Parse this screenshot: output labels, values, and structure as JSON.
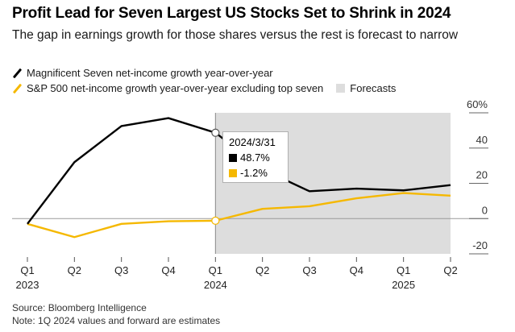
{
  "title": "Profit Lead for Seven Largest US Stocks Set to Shrink in 2024",
  "subtitle": "The gap in earnings growth for those shares versus the rest is forecast to narrow",
  "legend": {
    "series1": "Magnificent Seven net-income growth year-over-year",
    "series2": "S&P 500 net-income growth year-over-year excluding top seven",
    "forecasts": "Forecasts"
  },
  "tooltip": {
    "date": "2024/3/31",
    "value1": "48.7%",
    "value2": "-1.2%"
  },
  "footer": {
    "source": "Source: Bloomberg Intelligence",
    "note": "Note: 1Q 2024 values and forward are estimates"
  },
  "colors": {
    "series1": "#000000",
    "series2": "#f5b800",
    "forecast_shade": "#dddddd",
    "zero_line": "#9a9a9a"
  },
  "chart_data": {
    "type": "line",
    "title": "Profit Lead for Seven Largest US Stocks Set to Shrink in 2024",
    "xlabel": "",
    "ylabel": "",
    "categories": [
      "Q1 2023",
      "Q2 2023",
      "Q3 2023",
      "Q4 2023",
      "Q1 2024",
      "Q2 2024",
      "Q3 2024",
      "Q4 2024",
      "Q1 2025",
      "Q2 2025"
    ],
    "x_tick_labels": [
      {
        "q": "Q1",
        "year": "2023"
      },
      {
        "q": "Q2",
        "year": ""
      },
      {
        "q": "Q3",
        "year": ""
      },
      {
        "q": "Q4",
        "year": ""
      },
      {
        "q": "Q1",
        "year": "2024"
      },
      {
        "q": "Q2",
        "year": ""
      },
      {
        "q": "Q3",
        "year": ""
      },
      {
        "q": "Q4",
        "year": ""
      },
      {
        "q": "Q1",
        "year": "2025"
      },
      {
        "q": "Q2",
        "year": ""
      }
    ],
    "series": [
      {
        "name": "Magnificent Seven net-income growth year-over-year",
        "values": [
          -3,
          32,
          52.5,
          57,
          48.7,
          28,
          15.5,
          17,
          16,
          19
        ]
      },
      {
        "name": "S&P 500 net-income growth year-over-year excluding top seven",
        "values": [
          -3,
          -10.5,
          -3,
          -1.5,
          -1.2,
          5.5,
          7,
          11.5,
          14.5,
          13
        ]
      }
    ],
    "forecast_start_index": 4,
    "forecast_end_index": 9,
    "highlight_index": 4,
    "y_ticks": [
      60,
      40,
      20,
      0,
      -20
    ],
    "y_tick_labels": [
      "60%",
      "40",
      "20",
      "0",
      "-20"
    ],
    "ylim": [
      -20,
      60
    ],
    "grid": false,
    "y_axis_side": "right",
    "legend_position": "top-left"
  }
}
